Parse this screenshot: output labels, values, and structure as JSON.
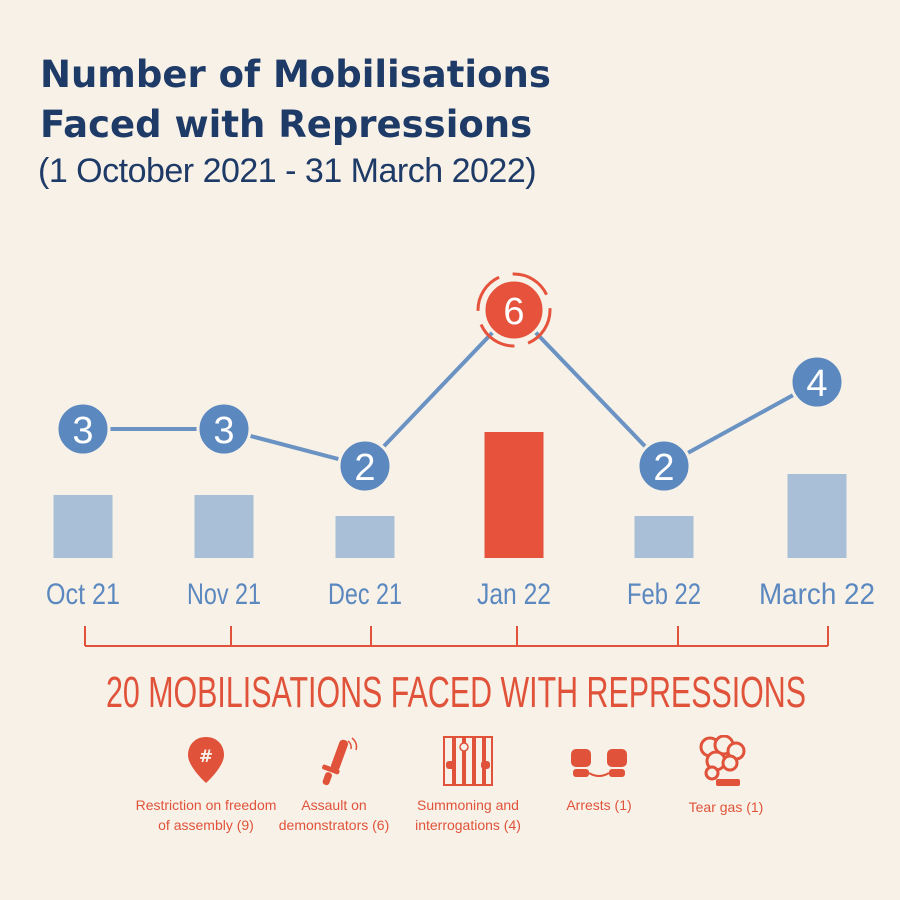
{
  "title_line1": "Number of Mobilisations",
  "title_line2": "Faced with Repressions",
  "subtitle": "(1 October 2021 - 31 March 2022)",
  "total_label": "20 MOBILISATIONS FACED WITH REPRESSIONS",
  "colors": {
    "bar": "#a9bfd8",
    "bar_highlight": "#e6523b",
    "line": "#6a93c3",
    "marker": "#5b88bf",
    "marker_highlight": "#e6523b",
    "accent": "#e0533a",
    "title": "#1e3a66",
    "axis_label": "#5b88bf"
  },
  "chart_data": {
    "type": "bar",
    "categories": [
      "Oct 21",
      "Nov 21",
      "Dec 21",
      "Jan 22",
      "Feb 22",
      "March 22"
    ],
    "values": [
      3,
      3,
      2,
      6,
      2,
      4
    ],
    "highlight_index": 3,
    "title": "Number of Mobilisations Faced with Repressions",
    "subtitle": "(1 October 2021 - 31 March 2022)",
    "total": 20,
    "grid": false
  },
  "legend": [
    {
      "icon": "map-pin-hashtag-icon",
      "line1": "Restriction on freedom",
      "line2": "of assembly (9)"
    },
    {
      "icon": "baton-icon",
      "line1": "Assault on",
      "line2": "demonstrators (6)"
    },
    {
      "icon": "jail-bars-icon",
      "line1": "Summoning and",
      "line2": "interrogations (4)"
    },
    {
      "icon": "handcuffs-icon",
      "line1": "Arrests (1)",
      "line2": ""
    },
    {
      "icon": "tear-gas-icon",
      "line1": "Tear gas (1)",
      "line2": ""
    }
  ]
}
